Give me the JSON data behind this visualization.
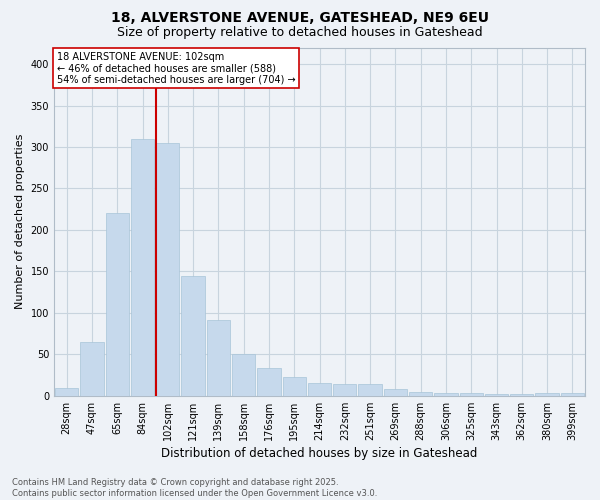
{
  "title": "18, ALVERSTONE AVENUE, GATESHEAD, NE9 6EU",
  "subtitle": "Size of property relative to detached houses in Gateshead",
  "xlabel": "Distribution of detached houses by size in Gateshead",
  "ylabel": "Number of detached properties",
  "footer_line1": "Contains HM Land Registry data © Crown copyright and database right 2025.",
  "footer_line2": "Contains public sector information licensed under the Open Government Licence v3.0.",
  "bin_labels": [
    "28sqm",
    "47sqm",
    "65sqm",
    "84sqm",
    "102sqm",
    "121sqm",
    "139sqm",
    "158sqm",
    "176sqm",
    "195sqm",
    "214sqm",
    "232sqm",
    "251sqm",
    "269sqm",
    "288sqm",
    "306sqm",
    "325sqm",
    "343sqm",
    "362sqm",
    "380sqm",
    "399sqm"
  ],
  "bar_heights": [
    10,
    65,
    220,
    310,
    305,
    145,
    92,
    50,
    33,
    23,
    15,
    14,
    14,
    8,
    5,
    4,
    4,
    2,
    2,
    4,
    4
  ],
  "bar_color": "#c6d9ec",
  "bar_edgecolor": "#a8c4d8",
  "bar_linewidth": 0.5,
  "vline_x_index": 4,
  "vline_color": "#cc0000",
  "annotation_text": "18 ALVERSTONE AVENUE: 102sqm\n← 46% of detached houses are smaller (588)\n54% of semi-detached houses are larger (704) →",
  "annotation_box_facecolor": "#ffffff",
  "annotation_box_edgecolor": "#cc0000",
  "annotation_fontsize": 7.0,
  "ylim": [
    0,
    420
  ],
  "yticks": [
    0,
    50,
    100,
    150,
    200,
    250,
    300,
    350,
    400
  ],
  "background_color": "#eef2f7",
  "grid_color": "#c8d4de",
  "title_fontsize": 10,
  "subtitle_fontsize": 9,
  "xlabel_fontsize": 8.5,
  "ylabel_fontsize": 8,
  "tick_fontsize": 7
}
